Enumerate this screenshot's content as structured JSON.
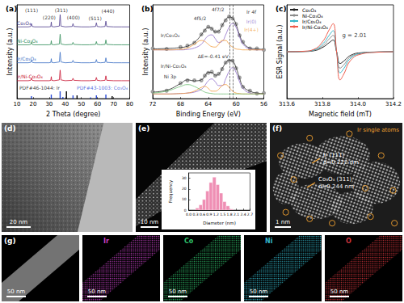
{
  "chart_data": [
    {
      "type": "line",
      "title": "(a)",
      "x_label": "2 Theta (degree)",
      "y_label": "Intensity (a.u.)",
      "xlim": [
        10,
        80
      ],
      "xticks": [
        10,
        20,
        30,
        40,
        50,
        60,
        70,
        80
      ],
      "ylim": [
        0,
        115
      ],
      "tick_labels": "x",
      "x": [
        10,
        17,
        18.5,
        19,
        19.5,
        21,
        30,
        31,
        31.3,
        31.6,
        33,
        36.3,
        36.8,
        37.3,
        40,
        44.3,
        44.8,
        45.3,
        50,
        55,
        58.8,
        59.3,
        59.8,
        62,
        64.7,
        65.2,
        65.7,
        70,
        75,
        80
      ],
      "series": [
        {
          "name": "Co₃O₄",
          "color": "#4b3a8c",
          "values": [
            88,
            88,
            88.5,
            92,
            88.5,
            88,
            88,
            88.5,
            94,
            88.5,
            88,
            89,
            103,
            89,
            88,
            88.5,
            92,
            88.5,
            88,
            88,
            88.5,
            93,
            88.5,
            88,
            88.5,
            95,
            88.5,
            88,
            88,
            88
          ]
        },
        {
          "name": "Ni-Co₃O₄",
          "color": "#2e8b57",
          "values": [
            66,
            66,
            66.5,
            69,
            66.5,
            66,
            66,
            66.5,
            71,
            66.5,
            66,
            67,
            79,
            67,
            66,
            66.5,
            69,
            66.5,
            66,
            66,
            66.5,
            70,
            66.5,
            66,
            66.5,
            72,
            66.5,
            66,
            66,
            66
          ]
        },
        {
          "name": "Ir/Co₃O₄",
          "color": "#3a6fc4",
          "values": [
            44,
            44,
            44.5,
            47,
            44.5,
            44,
            44,
            44.5,
            49,
            44.5,
            44,
            45,
            57,
            45,
            44,
            44.5,
            47,
            44.5,
            44,
            44,
            44.5,
            48,
            44.5,
            44,
            44.5,
            50,
            44.5,
            44,
            44,
            44
          ]
        },
        {
          "name": "Ir/Ni-Co₃O₄",
          "color": "#c8102e",
          "values": [
            22,
            22,
            22.5,
            25,
            22.5,
            22,
            22,
            22.5,
            27,
            22.5,
            22,
            23,
            35,
            23,
            22,
            22.5,
            25,
            22.5,
            22,
            22,
            22.5,
            26,
            22.5,
            22,
            22.5,
            28,
            22.5,
            22,
            22,
            22
          ]
        },
        {
          "type": "bar",
          "color": "#000000",
          "x": [
            40.7,
            47.3,
            69.1
          ],
          "values": [
            9,
            4,
            3
          ]
        },
        {
          "type": "bar",
          "color": "#2a4bd7",
          "x": [
            19,
            31.3,
            36.8,
            38.5,
            44.8,
            55.7,
            59.3,
            65.2
          ],
          "values": [
            3,
            5,
            9,
            2,
            4,
            1.5,
            4,
            5
          ]
        }
      ],
      "annotations": [
        {
          "text": "(111)",
          "x": 19,
          "y": 109
        },
        {
          "text": "(220)",
          "x": 30,
          "y": 100
        },
        {
          "text": "(311)",
          "x": 37.5,
          "y": 109
        },
        {
          "text": "(400)",
          "x": 45,
          "y": 100
        },
        {
          "text": "(511)",
          "x": 58.5,
          "y": 99
        },
        {
          "text": "(440)",
          "x": 66.5,
          "y": 108
        },
        {
          "text": "PDF#46-1044: Ir",
          "x": 24,
          "y": 13,
          "color": "#000000"
        },
        {
          "text": "PDF#43-1003: Co₃O₄",
          "x": 63,
          "y": 13,
          "color": "#2a4bd7"
        }
      ]
    },
    {
      "type": "line",
      "title": "(b)",
      "x_label": "Binding Energy (eV)",
      "y_label": "Intensity (a.u.)",
      "xlim": [
        72,
        56
      ],
      "xticks": [
        72,
        68,
        64,
        60,
        56
      ],
      "ylim": [
        0,
        100
      ],
      "tick_labels": "x",
      "x": [
        72,
        70,
        68,
        67,
        66,
        65,
        64.5,
        64,
        63.5,
        63,
        62.5,
        62,
        61.5,
        61,
        60.5,
        60,
        59.5,
        59,
        58,
        57,
        56
      ],
      "series": [
        {
          "type": "scatter",
          "marker": "open_circle",
          "color": "#8a8a8a",
          "values": [
            53.5,
            53,
            55,
            56.5,
            59.5,
            68.5,
            72.5,
            76.5,
            74.5,
            71.5,
            71.5,
            78.5,
            83.5,
            87.5,
            85.5,
            79.5,
            67.5,
            60.5,
            53.5,
            53.5,
            52
          ]
        },
        {
          "color": "#222222",
          "values": [
            53,
            53.5,
            54.5,
            56,
            60,
            68,
            73,
            76,
            75,
            71,
            72,
            78,
            84,
            87,
            86,
            79,
            68,
            60,
            54,
            53,
            52.5
          ]
        },
        {
          "color": "#8e6cc9",
          "values": [
            52,
            52,
            52,
            52.5,
            54,
            58,
            63,
            67,
            68,
            64,
            60,
            61,
            68,
            76,
            80,
            76,
            66,
            58,
            53,
            52,
            52
          ]
        },
        {
          "color": "#f29b38",
          "values": [
            52,
            52,
            52.5,
            54,
            58,
            62,
            61,
            58,
            55.5,
            55,
            58,
            62,
            62,
            58,
            55,
            53,
            52.5,
            52,
            52,
            52,
            52
          ]
        },
        {
          "type": "scatter",
          "marker": "open_circle",
          "color": "#8a8a8a",
          "values": [
            7.5,
            8.5,
            16.5,
            19.5,
            19.5,
            19.5,
            24.5,
            27.5,
            28.5,
            24.5,
            26.5,
            31.5,
            38.5,
            40.5,
            40.5,
            32.5,
            22.5,
            12.5,
            8.5,
            5.5,
            6
          ]
        },
        {
          "color": "#222222",
          "values": [
            7,
            9,
            16,
            20,
            19,
            20,
            24,
            28,
            28,
            25,
            26,
            32,
            38,
            41,
            40,
            33,
            22,
            13,
            8,
            6,
            5.5
          ]
        },
        {
          "color": "#8e6cc9",
          "values": [
            5,
            5,
            5.5,
            6,
            7,
            10,
            14,
            19,
            21,
            18,
            14,
            14,
            21,
            29,
            33,
            28,
            18,
            11,
            6,
            5,
            5
          ]
        },
        {
          "color": "#f29b38",
          "values": [
            5,
            5,
            5.5,
            6,
            8,
            12,
            13,
            11,
            8,
            8,
            10,
            14,
            15,
            12,
            8,
            6,
            5.5,
            5,
            5,
            5,
            5
          ]
        },
        {
          "color": "#6fbf73",
          "values": [
            6,
            8,
            13,
            15,
            13,
            9,
            7,
            6,
            5.5,
            5,
            5,
            5,
            5,
            5,
            5,
            5,
            5,
            5,
            5,
            5,
            5
          ]
        }
      ],
      "vlines": [
        60.91,
        60.5
      ],
      "annotations": [
        {
          "text": "Ir 4f",
          "x": 57.8,
          "y": 93
        },
        {
          "text": "4f5/2",
          "x": 65.2,
          "y": 86
        },
        {
          "text": "4f7/2",
          "x": 62.6,
          "y": 95
        },
        {
          "text": "Ir(0)",
          "x": 57.8,
          "y": 82,
          "color": "#8e6cc9"
        },
        {
          "text": "Ir(4+)",
          "x": 57.8,
          "y": 74,
          "color": "#f29b38"
        },
        {
          "text": "Ir/Co₃O₄",
          "x": 69.5,
          "y": 68
        },
        {
          "text": "Ir/Ni-Co₃O₄",
          "x": 69,
          "y": 35
        },
        {
          "text": "Ni 3p",
          "x": 69.5,
          "y": 24
        },
        {
          "text": "ΔE=-0.41 eV",
          "x": 63.3,
          "y": 45
        }
      ]
    },
    {
      "type": "line",
      "title": "(c)",
      "x_label": "Magnetic field (mT)",
      "y_label": "ESR Signal (a.u.)",
      "xlim": [
        313.6,
        314.2
      ],
      "xticks": [
        313.6,
        313.8,
        {
          "value": 314,
          "label": "314.0"
        },
        314.2
      ],
      "ylim": [
        -100,
        100
      ],
      "tick_labels": "x",
      "legend": "top-left",
      "x": [
        313.6,
        313.7,
        313.75,
        313.8,
        313.84,
        313.86,
        313.88,
        313.9,
        313.92,
        313.96,
        314.02,
        314.1,
        314.2
      ],
      "series": [
        {
          "name": "Co₃O₄",
          "color": "#222222",
          "values": [
            0,
            0.5,
            2,
            9,
            20,
            25,
            0,
            -25,
            -20,
            -7.5,
            -2,
            -0.5,
            0
          ]
        },
        {
          "name": "Ni-Co₃O₄",
          "color": "#8c8c8c",
          "values": [
            0,
            0.7,
            2.8,
            12,
            28,
            35,
            0,
            -35,
            -28,
            -10.5,
            -2.8,
            -0.7,
            0
          ]
        },
        {
          "name": "Ir/Co₃O₄",
          "color": "#35b6c9",
          "values": [
            0,
            0.9,
            3.6,
            16,
            36,
            45,
            0,
            -45,
            -36,
            -13.5,
            -3.6,
            -0.9,
            0
          ]
        },
        {
          "name": "Ir/Ni-Co₃O₄",
          "color": "#ef5a4a",
          "values": [
            0,
            1.2,
            4.8,
            21,
            48,
            60,
            0,
            -60,
            -48,
            -18,
            -4.8,
            -1.2,
            0
          ]
        }
      ],
      "annotations": [
        {
          "text": "g = 2.01",
          "x": 313.98,
          "y": 35
        }
      ]
    },
    {
      "type": "histogram",
      "x_label": "Diameter (nm)",
      "y_label": "Frequency",
      "bins": [
        0.3,
        0.45,
        0.6,
        0.75,
        0.9,
        1.05,
        1.2,
        1.35,
        1.5,
        1.65,
        1.8,
        1.95
      ],
      "counts": [
        2,
        5,
        10,
        18,
        26,
        31,
        24,
        16,
        8,
        4,
        1
      ],
      "color": "#ef8fb4",
      "xlim": [
        0,
        2.7
      ],
      "xticks": [
        {
          "value": 0,
          "label": "0.0"
        },
        0.3,
        0.6,
        0.9,
        1.2,
        1.5,
        1.8,
        2.1,
        2.4,
        2.7
      ],
      "ylim": [
        0,
        35
      ],
      "yticks": [
        0,
        10,
        20,
        30
      ]
    }
  ],
  "images": [
    {
      "label": "(d)",
      "scale_bar": "20 nm"
    },
    {
      "label": "(e)",
      "scale_bar": "10 nm"
    },
    {
      "label": "(f)",
      "scale_bar": "1 nm",
      "texts": [
        "Ir single atoms",
        "Ir (111)",
        "d=0.222 nm",
        "Co₃O₄ (311)",
        "d=0.244 nm"
      ]
    },
    {
      "label": "(g)",
      "tiles": [
        {
          "color": "#9a9a9a",
          "scale_bar": "50 nm"
        },
        {
          "title": "Ir",
          "color": "#c23fc2",
          "scale_bar": "50 nm"
        },
        {
          "title": "Co",
          "color": "#2fbf6a",
          "scale_bar": "50 nm"
        },
        {
          "title": "Ni",
          "color": "#33b5c8",
          "scale_bar": "50 nm"
        },
        {
          "title": "O",
          "color": "#d0343a",
          "scale_bar": "50 nm"
        }
      ]
    }
  ]
}
